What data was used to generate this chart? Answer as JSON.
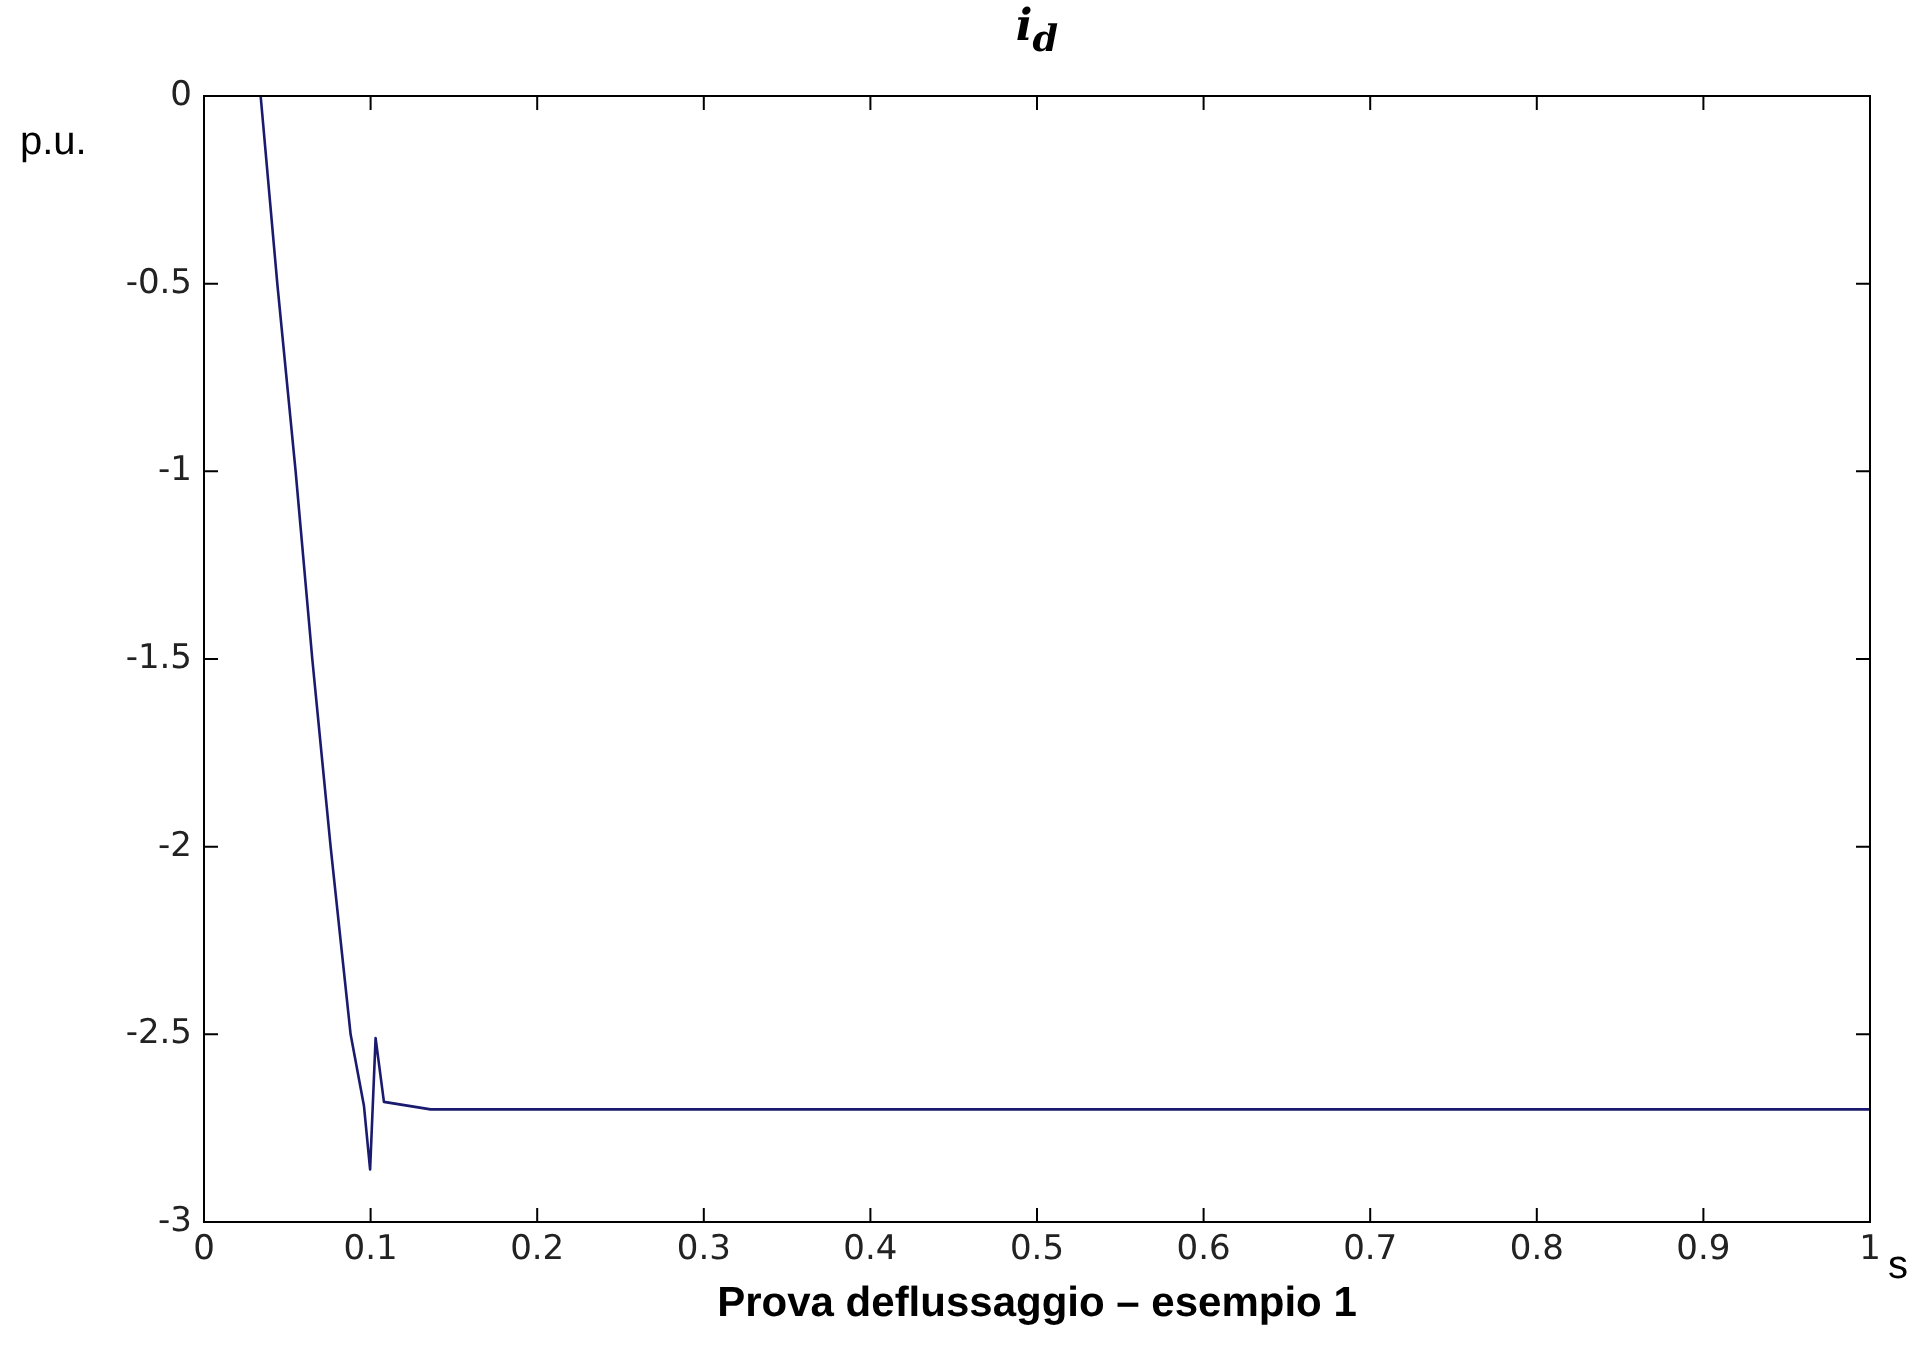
{
  "chart_data": {
    "type": "line",
    "title": "i$_{d}$",
    "xlabel": "s",
    "ylabel": "p.u.",
    "annotations": [
      "Prova deflussaggio – esempio 1"
    ],
    "x": [
      0.034,
      0.044,
      0.055,
      0.065,
      0.076,
      0.088,
      0.096,
      0.0997,
      0.103,
      0.108,
      0.122,
      0.136,
      0.2,
      0.4,
      0.6,
      0.8,
      1.0
    ],
    "series": [
      {
        "color": "#1a1a6e",
        "values": [
          0,
          -0.5,
          -1,
          -1.5,
          -2,
          -2.5,
          -2.69,
          -2.86,
          -2.51,
          -2.68,
          -2.69,
          -2.7,
          -2.7,
          -2.7,
          -2.7,
          -2.7,
          -2.7
        ]
      }
    ],
    "xlim": [
      0,
      1
    ],
    "ylim": [
      -3,
      0
    ],
    "xticks": [
      0,
      0.1,
      0.2,
      0.3,
      0.4,
      0.5,
      0.6,
      0.7,
      0.8,
      0.9,
      1
    ],
    "yticks": [
      -3,
      -2.5,
      -2,
      -1.5,
      -1,
      -0.5,
      0
    ],
    "grid": false,
    "legend": false,
    "marker": "none",
    "line_style": "solid"
  }
}
